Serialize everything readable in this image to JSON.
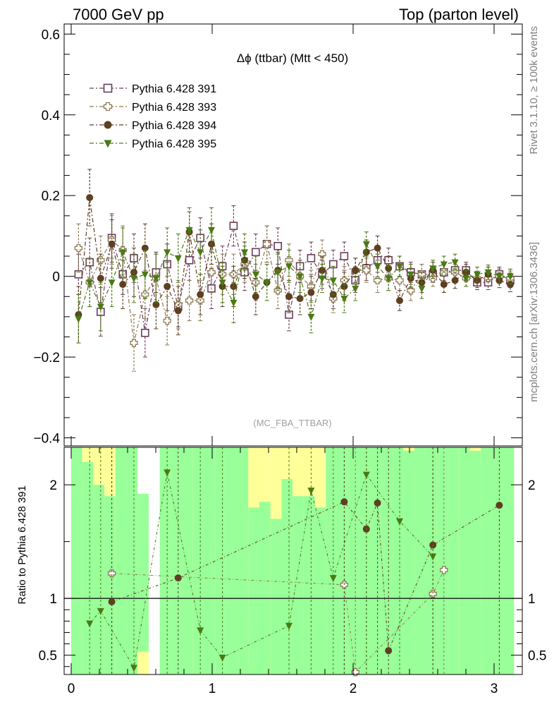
{
  "header": {
    "left": "7000 GeV pp",
    "right": "Top (parton level)"
  },
  "side_labels": {
    "rivet": "Rivet 3.1.10, ≥ 100k events",
    "mcplots": "mcplots.cern.ch [arXiv:1306.3436]"
  },
  "chart_data": [
    {
      "type": "scatter",
      "title": "Δϕ (ttbar) (Mtt < 450)",
      "watermark": "(MC_FBA_TTBAR)",
      "xlabel": "",
      "ylabel": "",
      "xlim": [
        -0.05,
        3.2
      ],
      "ylim": [
        -0.42,
        0.625
      ],
      "yticks": [
        -0.4,
        -0.2,
        0,
        0.2,
        0.4,
        0.6
      ],
      "ytick_labels": [
        "−0.4",
        "−0.2",
        "0",
        "0.2",
        "0.4",
        "0.6"
      ],
      "legend_position": "top-left",
      "series": [
        {
          "name": "Pythia 6.428 391",
          "marker": "open-square",
          "color": "#6b3d5a",
          "x": [
            0.052,
            0.131,
            0.209,
            0.288,
            0.366,
            0.445,
            0.524,
            0.602,
            0.681,
            0.759,
            0.838,
            0.916,
            0.995,
            1.073,
            1.152,
            1.23,
            1.309,
            1.388,
            1.466,
            1.545,
            1.623,
            1.702,
            1.78,
            1.859,
            1.937,
            2.016,
            2.094,
            2.173,
            2.251,
            2.33,
            2.409,
            2.487,
            2.566,
            2.644,
            2.723,
            2.801,
            2.88,
            2.958,
            3.037,
            3.115
          ],
          "y": [
            0.005,
            0.035,
            -0.088,
            0.095,
            0.005,
            0.045,
            -0.14,
            0.01,
            0.03,
            -0.075,
            0.04,
            0.095,
            -0.03,
            0.025,
            0.125,
            0.01,
            0.06,
            0.08,
            0.075,
            -0.095,
            0.025,
            0.045,
            0.005,
            0.03,
            0.05,
            -0.01,
            0.02,
            0.04,
            0.04,
            0.025,
            0.01,
            0.005,
            0.005,
            0.01,
            0.015,
            0.015,
            -0.015,
            -0.015,
            0.005,
            -0.01
          ],
          "err": [
            0.05,
            0.06,
            0.06,
            0.06,
            0.05,
            0.06,
            0.06,
            0.05,
            0.05,
            0.05,
            0.05,
            0.05,
            0.05,
            0.05,
            0.05,
            0.045,
            0.045,
            0.045,
            0.045,
            0.04,
            0.04,
            0.04,
            0.035,
            0.035,
            0.035,
            0.03,
            0.03,
            0.03,
            0.03,
            0.025,
            0.025,
            0.025,
            0.02,
            0.02,
            0.02,
            0.02,
            0.018,
            0.018,
            0.018,
            0.018
          ]
        },
        {
          "name": "Pythia 6.428 393",
          "marker": "open-cross",
          "color": "#8c7a52",
          "x": [
            0.052,
            0.131,
            0.209,
            0.288,
            0.366,
            0.445,
            0.524,
            0.602,
            0.681,
            0.759,
            0.838,
            0.916,
            0.995,
            1.073,
            1.152,
            1.23,
            1.309,
            1.388,
            1.466,
            1.545,
            1.623,
            1.702,
            1.78,
            1.859,
            1.937,
            2.016,
            2.094,
            2.173,
            2.251,
            2.33,
            2.409,
            2.487,
            2.566,
            2.644,
            2.723,
            2.801,
            2.88,
            2.958,
            3.037,
            3.115
          ],
          "y": [
            0.07,
            -0.015,
            0.04,
            0.09,
            0.065,
            -0.165,
            -0.045,
            -0.005,
            -0.11,
            -0.07,
            -0.06,
            -0.06,
            0.01,
            0.005,
            0.005,
            0.03,
            -0.015,
            0.08,
            -0.035,
            0.04,
            0.0,
            -0.025,
            0.055,
            -0.055,
            -0.01,
            0.015,
            0.015,
            -0.01,
            -0.005,
            -0.01,
            -0.035,
            0.005,
            -0.005,
            0.01,
            0.01,
            -0.005,
            -0.005,
            -0.005,
            0.0,
            -0.005
          ],
          "err": [
            0.06,
            0.06,
            0.06,
            0.06,
            0.06,
            0.07,
            0.06,
            0.06,
            0.06,
            0.06,
            0.05,
            0.05,
            0.05,
            0.05,
            0.05,
            0.045,
            0.045,
            0.045,
            0.045,
            0.04,
            0.04,
            0.04,
            0.035,
            0.035,
            0.035,
            0.03,
            0.03,
            0.03,
            0.03,
            0.025,
            0.025,
            0.025,
            0.02,
            0.02,
            0.02,
            0.02,
            0.018,
            0.018,
            0.018,
            0.018
          ]
        },
        {
          "name": "Pythia 6.428 394",
          "marker": "filled-circle",
          "color": "#5e3f22",
          "x": [
            0.052,
            0.131,
            0.209,
            0.288,
            0.366,
            0.445,
            0.524,
            0.602,
            0.681,
            0.759,
            0.838,
            0.916,
            0.995,
            1.073,
            1.152,
            1.23,
            1.309,
            1.388,
            1.466,
            1.545,
            1.623,
            1.702,
            1.78,
            1.859,
            1.937,
            2.016,
            2.094,
            2.173,
            2.251,
            2.33,
            2.409,
            2.487,
            2.566,
            2.644,
            2.723,
            2.801,
            2.88,
            2.958,
            3.037,
            3.115
          ],
          "y": [
            -0.095,
            0.195,
            -0.005,
            0.08,
            -0.02,
            0.01,
            0.07,
            -0.07,
            -0.025,
            -0.085,
            0.11,
            -0.045,
            0.08,
            -0.025,
            -0.025,
            0.04,
            -0.05,
            -0.015,
            0.015,
            -0.05,
            -0.055,
            -0.04,
            0.015,
            -0.045,
            -0.025,
            0.015,
            0.06,
            0.07,
            0.02,
            -0.06,
            -0.005,
            -0.015,
            0.015,
            -0.02,
            -0.01,
            0.01,
            -0.01,
            0.005,
            -0.01,
            -0.02
          ],
          "err": [
            0.07,
            0.07,
            0.06,
            0.06,
            0.06,
            0.06,
            0.06,
            0.06,
            0.06,
            0.06,
            0.05,
            0.05,
            0.05,
            0.05,
            0.05,
            0.045,
            0.045,
            0.045,
            0.045,
            0.04,
            0.04,
            0.04,
            0.035,
            0.035,
            0.035,
            0.03,
            0.03,
            0.03,
            0.03,
            0.025,
            0.025,
            0.025,
            0.02,
            0.02,
            0.02,
            0.02,
            0.018,
            0.018,
            0.018,
            0.018
          ]
        },
        {
          "name": "Pythia 6.428 395",
          "marker": "filled-triangle-down",
          "color": "#4a7a14",
          "x": [
            0.052,
            0.131,
            0.209,
            0.288,
            0.366,
            0.445,
            0.524,
            0.602,
            0.681,
            0.759,
            0.838,
            0.916,
            0.995,
            1.073,
            1.152,
            1.23,
            1.309,
            1.388,
            1.466,
            1.545,
            1.623,
            1.702,
            1.78,
            1.859,
            1.937,
            2.016,
            2.094,
            2.173,
            2.251,
            2.33,
            2.409,
            2.487,
            2.566,
            2.644,
            2.723,
            2.801,
            2.88,
            2.958,
            3.037,
            3.115
          ],
          "y": [
            -0.105,
            -0.015,
            -0.075,
            -0.015,
            0.06,
            -0.005,
            0.005,
            -0.005,
            0.06,
            0.045,
            0.115,
            0.06,
            0.115,
            -0.015,
            -0.065,
            0.06,
            0.005,
            -0.015,
            0.01,
            0.025,
            0.0,
            -0.1,
            -0.005,
            -0.01,
            -0.055,
            -0.03,
            0.08,
            0.025,
            -0.005,
            0.025,
            0.005,
            -0.03,
            0.02,
            0.03,
            0.035,
            -0.005,
            0.005,
            0.01,
            0.0,
            0.0
          ],
          "err": [
            0.06,
            0.06,
            0.06,
            0.06,
            0.06,
            0.06,
            0.06,
            0.06,
            0.06,
            0.06,
            0.055,
            0.055,
            0.055,
            0.05,
            0.05,
            0.045,
            0.045,
            0.045,
            0.045,
            0.04,
            0.04,
            0.04,
            0.035,
            0.035,
            0.035,
            0.03,
            0.03,
            0.03,
            0.03,
            0.025,
            0.025,
            0.025,
            0.02,
            0.02,
            0.02,
            0.02,
            0.018,
            0.018,
            0.018,
            0.018
          ]
        }
      ]
    },
    {
      "type": "scatter",
      "ylabel": "Ratio to Pythia 6.428 391",
      "xlabel": "",
      "xlim": [
        -0.05,
        3.2
      ],
      "ylim": [
        0.33,
        2.33
      ],
      "yticks": [
        0.5,
        1,
        2
      ],
      "ytick_labels": [
        "0.5",
        "1",
        "2"
      ],
      "xticks": [
        0,
        1,
        2,
        3
      ],
      "xtick_labels": [
        "0",
        "1",
        "2",
        "3"
      ],
      "reference_line": 1,
      "band_colors": {
        "inner": "#99ff99",
        "outer": "#ffff99"
      },
      "series": [
        {
          "name": "Pythia 6.428 393",
          "marker": "open-cross",
          "color": "#8c7a52",
          "x": [
            0.288,
            1.937,
            2.016,
            2.566,
            2.644
          ],
          "y": [
            1.22,
            1.12,
            0.35,
            1.04,
            1.25
          ]
        },
        {
          "name": "Pythia 6.428 394",
          "marker": "filled-circle",
          "color": "#5e3f22",
          "x": [
            0.288,
            0.759,
            1.937,
            2.094,
            2.173,
            2.251,
            2.566,
            3.037
          ],
          "y": [
            0.97,
            1.18,
            1.85,
            1.61,
            1.84,
            0.54,
            1.47,
            1.82
          ]
        },
        {
          "name": "Pythia 6.428 395",
          "marker": "filled-triangle-down",
          "color": "#4a7a14",
          "x": [
            0.131,
            0.209,
            0.445,
            0.681,
            0.916,
            1.073,
            1.545,
            1.702,
            1.859,
            2.094,
            2.33,
            2.566
          ],
          "y": [
            0.78,
            0.89,
            0.39,
            2.11,
            0.72,
            0.48,
            0.76,
            1.95,
            1.18,
            2.09,
            1.68,
            1.37
          ]
        }
      ]
    }
  ]
}
